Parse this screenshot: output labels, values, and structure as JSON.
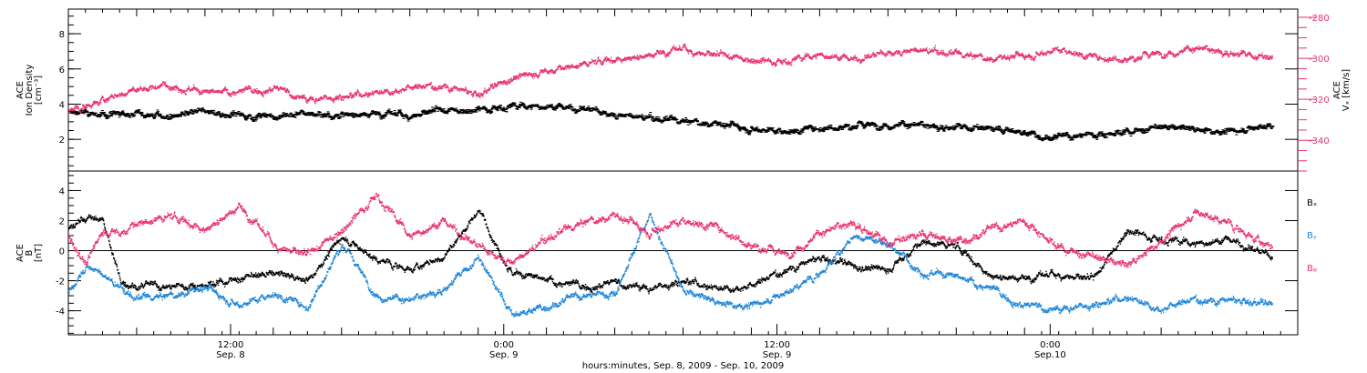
{
  "colors": {
    "frame": "#000000",
    "density": "#000000",
    "vx": "#e8336b",
    "bx": "#000000",
    "by": "#1f86d8",
    "bz": "#e8336b"
  },
  "xaxis": {
    "title": "hours:minutes, Sep.  8, 2009 - Sep. 10, 2009",
    "range_hours": [
      0,
      72
    ],
    "ticks": [
      {
        "hour": 9.5,
        "time": "12:00",
        "date": "Sep. 8"
      },
      {
        "hour": 25.5,
        "time": "0:00",
        "date": "Sep. 9"
      },
      {
        "hour": 41.5,
        "time": "12:00",
        "date": "Sep. 9"
      },
      {
        "hour": 57.5,
        "time": "0:00",
        "date": "Sep.10"
      }
    ]
  },
  "chart_data": [
    {
      "type": "scatter",
      "ylabel": [
        "ACE",
        "Ion Density",
        "[cm⁻³]"
      ],
      "ylabel_right": [
        "ACE",
        "Vₓ [km/s]"
      ],
      "ylim": [
        0.2,
        9.4
      ],
      "yticks": [
        "2",
        "4",
        "6",
        "8"
      ],
      "ylim_right": [
        -355,
        -276
      ],
      "yticks_right": [
        "-280",
        "-300",
        "-320",
        "-340"
      ],
      "series": [
        {
          "key": "density",
          "x": [
            0,
            2,
            4,
            6,
            8,
            10,
            12,
            14,
            16,
            18,
            20,
            22,
            24,
            26,
            28,
            30,
            32,
            34,
            36,
            38,
            40,
            41,
            42,
            44,
            46,
            48,
            50,
            52,
            54,
            56,
            58,
            60,
            62,
            64,
            66,
            68,
            70.5
          ],
          "y": [
            3.6,
            3.4,
            3.5,
            3.3,
            3.6,
            3.4,
            3.3,
            3.5,
            3.4,
            3.5,
            3.4,
            3.6,
            3.8,
            3.9,
            3.9,
            3.8,
            3.4,
            3.2,
            3.0,
            2.9,
            2.7,
            2.6,
            2.5,
            2.7,
            2.8,
            2.9,
            2.8,
            2.7,
            2.6,
            2.4,
            2.1,
            2.3,
            2.5,
            2.7,
            2.6,
            2.5,
            2.8
          ]
        },
        {
          "key": "vx",
          "x": [
            0,
            2,
            4,
            6,
            8,
            10,
            12,
            14,
            16,
            18,
            20,
            22,
            24,
            26,
            28,
            30,
            32,
            34,
            36,
            38,
            40,
            42,
            44,
            46,
            48,
            50,
            52,
            54,
            56,
            58,
            60,
            62,
            64,
            66,
            68,
            70.5
          ],
          "y": [
            -326,
            -320,
            -315,
            -312,
            -317,
            -316,
            -314,
            -320,
            -318,
            -316,
            -314,
            -313,
            -318,
            -309,
            -306,
            -303,
            -300,
            -298,
            -295,
            -299,
            -300,
            -301,
            -298,
            -300,
            -297,
            -296,
            -298,
            -300,
            -298,
            -295,
            -299,
            -300,
            -297,
            -295,
            -297,
            -300
          ]
        }
      ]
    },
    {
      "type": "scatter",
      "ylabel": [
        "ACE",
        "B",
        "[nT]"
      ],
      "ylim": [
        -5.6,
        5.3
      ],
      "yticks": [
        "-4",
        "-2",
        "0",
        "2",
        "4"
      ],
      "zero_line": true,
      "legend": [
        "Bₓ",
        "Bᵧ",
        "Bᵩ"
      ],
      "legend_placement": "right",
      "series": [
        {
          "key": "bx",
          "x": [
            0,
            1,
            2,
            3,
            4,
            6,
            8,
            10,
            12,
            14,
            16,
            18,
            20,
            22,
            24,
            26,
            28,
            30,
            32,
            34,
            36,
            38,
            40,
            42,
            44,
            46,
            48,
            50,
            52,
            54,
            56,
            58,
            60,
            62,
            64,
            66,
            68,
            70.5
          ],
          "y": [
            1.5,
            2.2,
            2.1,
            -1.9,
            -2.3,
            -2.4,
            -2.2,
            -1.8,
            -1.5,
            -1.9,
            1.0,
            -0.6,
            -1.2,
            -0.4,
            2.8,
            -1.5,
            -2.0,
            -2.3,
            -2.1,
            -2.5,
            -1.9,
            -2.4,
            -2.3,
            -1.2,
            -0.5,
            -1.0,
            -1.2,
            0.6,
            0.3,
            -1.6,
            -1.8,
            -1.5,
            -2.0,
            1.5,
            0.8,
            0.5,
            0.8,
            -0.4
          ]
        },
        {
          "key": "by",
          "x": [
            0,
            1,
            2,
            3,
            4,
            6,
            8,
            10,
            12,
            14,
            16,
            18,
            20,
            22,
            24,
            26,
            28,
            30,
            32,
            34,
            36,
            38,
            40,
            42,
            44,
            46,
            48,
            50,
            52,
            54,
            56,
            58,
            60,
            62,
            64,
            66,
            68,
            70.5
          ],
          "y": [
            -2.8,
            -1.0,
            -1.6,
            -2.5,
            -3.2,
            -3.0,
            -2.4,
            -3.5,
            -2.8,
            -3.7,
            0.5,
            -2.9,
            -3.3,
            -2.5,
            -0.5,
            -4.3,
            -3.6,
            -3.0,
            -2.8,
            2.5,
            -2.7,
            -3.4,
            -3.6,
            -2.8,
            -1.5,
            1.0,
            0.5,
            -1.3,
            -1.8,
            -2.5,
            -3.6,
            -3.9,
            -3.5,
            -3.0,
            -3.8,
            -3.2,
            -3.3,
            -3.6
          ]
        },
        {
          "key": "bz",
          "x": [
            0,
            1,
            2,
            3,
            4,
            6,
            8,
            10,
            12,
            14,
            16,
            18,
            20,
            22,
            24,
            26,
            28,
            30,
            32,
            34,
            36,
            38,
            40,
            42,
            44,
            46,
            48,
            50,
            52,
            54,
            56,
            58,
            60,
            62,
            64,
            66,
            68,
            70.5
          ],
          "y": [
            1.0,
            -0.8,
            1.4,
            1.2,
            1.8,
            2.3,
            1.5,
            3.0,
            0.5,
            -0.4,
            1.5,
            3.8,
            1.0,
            2.0,
            0.3,
            -0.8,
            0.8,
            1.8,
            2.4,
            1.4,
            2.1,
            1.6,
            0.4,
            -0.2,
            1.2,
            1.9,
            0.5,
            1.1,
            0.7,
            1.4,
            2.0,
            0.3,
            -0.4,
            -1.0,
            0.8,
            2.6,
            1.8,
            0.2
          ]
        }
      ]
    }
  ]
}
